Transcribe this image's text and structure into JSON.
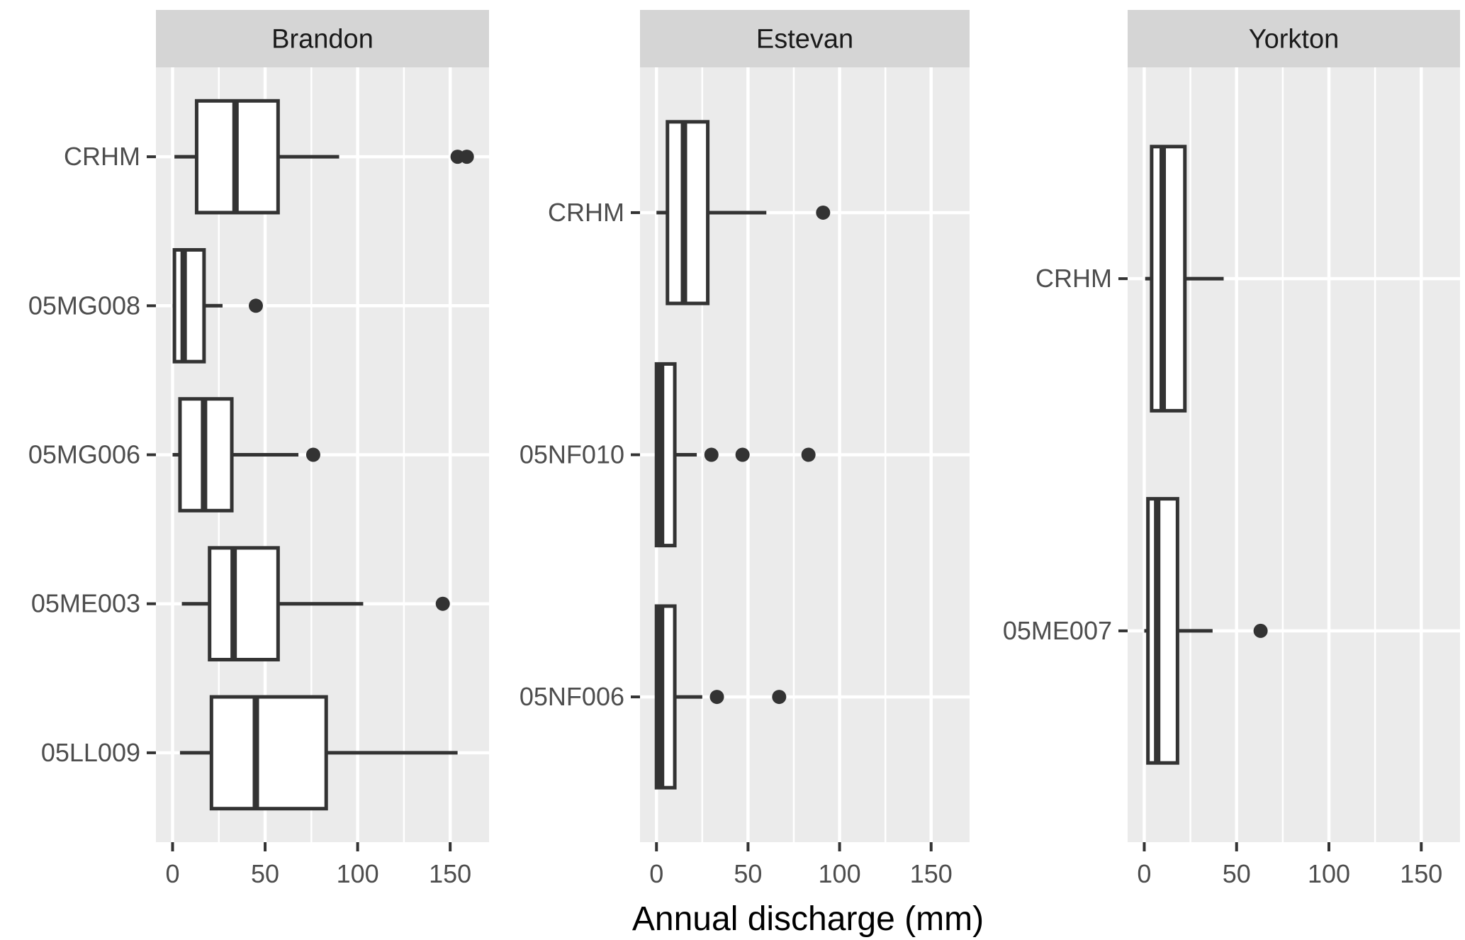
{
  "chart_data": {
    "type": "boxplot",
    "orientation": "horizontal",
    "title": "",
    "xlabel": "Annual discharge (mm)",
    "x_ticks": [
      0,
      50,
      100,
      150
    ],
    "x_minor_gridlines": [
      25,
      75,
      125
    ],
    "xlim": [
      -9,
      171
    ],
    "grid": true,
    "legend": "none",
    "facets": [
      {
        "title": "Brandon",
        "rows": [
          {
            "label": "CRHM",
            "whisker_low": 1,
            "q1": 13,
            "median": 34,
            "q3": 57,
            "whisker_high": 90,
            "outliers": [
              154,
              159
            ]
          },
          {
            "label": "05MG008",
            "whisker_low": 0,
            "q1": 1,
            "median": 6,
            "q3": 17,
            "whisker_high": 27,
            "outliers": [
              45
            ]
          },
          {
            "label": "05MG006",
            "whisker_low": 0,
            "q1": 4,
            "median": 17,
            "q3": 32,
            "whisker_high": 68,
            "outliers": [
              76
            ]
          },
          {
            "label": "05ME003",
            "whisker_low": 5,
            "q1": 20,
            "median": 33,
            "q3": 57,
            "whisker_high": 103,
            "outliers": [
              146
            ]
          },
          {
            "label": "05LL009",
            "whisker_low": 4,
            "q1": 21,
            "median": 45,
            "q3": 83,
            "whisker_high": 154,
            "outliers": []
          }
        ]
      },
      {
        "title": "Estevan",
        "rows": [
          {
            "label": "CRHM",
            "whisker_low": 0,
            "q1": 6,
            "median": 15,
            "q3": 28,
            "whisker_high": 60,
            "outliers": [
              91
            ]
          },
          {
            "label": "05NF010",
            "whisker_low": 0,
            "q1": 0,
            "median": 2.5,
            "q3": 10,
            "whisker_high": 22,
            "outliers": [
              30,
              47,
              83
            ]
          },
          {
            "label": "05NF006",
            "whisker_low": 0,
            "q1": 0,
            "median": 2.5,
            "q3": 10,
            "whisker_high": 25,
            "outliers": [
              33,
              67
            ]
          }
        ]
      },
      {
        "title": "Yorkton",
        "rows": [
          {
            "label": "CRHM",
            "whisker_low": 0.5,
            "q1": 4,
            "median": 10,
            "q3": 22,
            "whisker_high": 43,
            "outliers": []
          },
          {
            "label": "05ME007",
            "whisker_low": 0,
            "q1": 2,
            "median": 7,
            "q3": 18,
            "whisker_high": 37,
            "outliers": [
              63
            ]
          }
        ]
      }
    ],
    "colors": {
      "panel_background": "#EBEBEB",
      "strip_background": "#D5D5D5",
      "gridline": "#FFFFFF",
      "box_stroke": "#333333",
      "box_fill": "#FFFFFF",
      "outlier_fill": "#333333",
      "tick_mark": "#333333",
      "tick_label_text": "#4D4D4D",
      "strip_text": "#1A1A1A",
      "axis_title_text": "#000000"
    }
  }
}
